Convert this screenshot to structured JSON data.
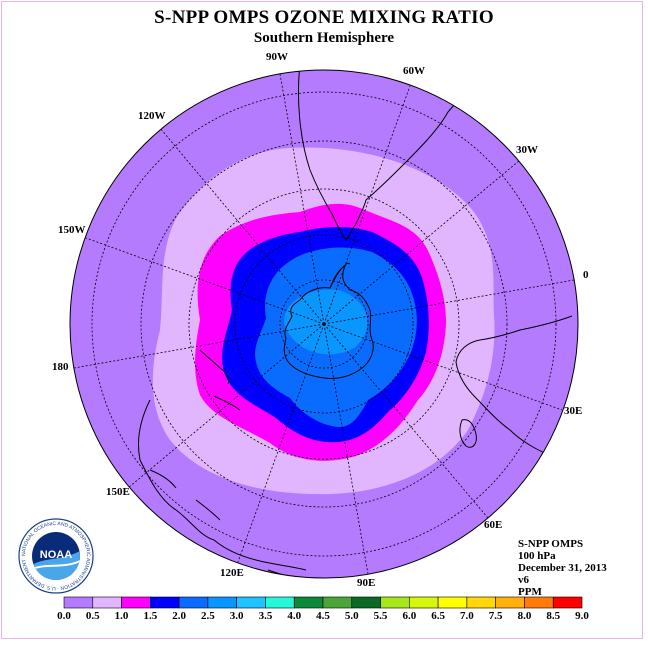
{
  "title": "S-NPP OMPS OZONE MIXING RATIO",
  "subtitle": "Southern Hemisphere",
  "longitude_labels": [
    "90W",
    "60W",
    "30W",
    "0",
    "30E",
    "60E",
    "90E",
    "120E",
    "150E",
    "180",
    "150W",
    "120W"
  ],
  "info": {
    "instrument": "S-NPP OMPS",
    "level": "100 hPa",
    "date": "December 31, 2013",
    "version": "v6",
    "units": "PPM"
  },
  "logo": {
    "text": "NOAA",
    "ring_text": "NATIONAL OCEANIC AND ATMOSPHERIC ADMINISTRATION · U.S. DEPARTMENT OF COMMERCE"
  },
  "colorbar": {
    "ticks": [
      "0.0",
      "0.5",
      "1.0",
      "1.5",
      "2.0",
      "2.5",
      "3.0",
      "3.5",
      "4.0",
      "4.5",
      "5.0",
      "5.5",
      "6.0",
      "6.5",
      "7.0",
      "7.5",
      "8.0",
      "8.5",
      "9.0"
    ],
    "colors": [
      "#b57bff",
      "#e1b6ff",
      "#ff00ff",
      "#0000ff",
      "#0a6cff",
      "#0a96ff",
      "#1ec3ff",
      "#26f7d8",
      "#0c8a3a",
      "#4aa63a",
      "#0c6a26",
      "#a6e61a",
      "#d6f70a",
      "#ffff00",
      "#ffd70a",
      "#ffb00a",
      "#ff7b0a",
      "#ff0000",
      "#8b5a3c"
    ]
  },
  "chart_data": {
    "type": "heatmap",
    "title": "S-NPP OMPS OZONE MIXING RATIO",
    "subtitle": "Southern Hemisphere",
    "projection": "south polar stereographic",
    "variable_units": "PPM",
    "level": "100 hPa",
    "date": "December 31, 2013",
    "color_scale": {
      "min": 0.0,
      "max": 9.0,
      "step": 0.5,
      "levels": [
        0.0,
        0.5,
        1.0,
        1.5,
        2.0,
        2.5,
        3.0,
        3.5,
        4.0,
        4.5,
        5.0,
        5.5,
        6.0,
        6.5,
        7.0,
        7.5,
        8.0,
        8.5,
        9.0
      ]
    },
    "regions": [
      {
        "range": [
          0.0,
          0.5
        ],
        "color": "#b57bff",
        "location": "mid latitudes (background)"
      },
      {
        "range": [
          0.5,
          1.0
        ],
        "color": "#e1b6ff",
        "location": "outer ring around polar vortex"
      },
      {
        "range": [
          1.0,
          1.5
        ],
        "color": "#ff00ff",
        "location": "vortex edge"
      },
      {
        "range": [
          1.5,
          2.0
        ],
        "color": "#0000ff",
        "location": "vortex interior ring"
      },
      {
        "range": [
          2.0,
          2.5
        ],
        "color": "#0a6cff",
        "location": "polar vortex core"
      },
      {
        "range": [
          2.5,
          3.0
        ],
        "color": "#0a96ff",
        "location": "near South Pole"
      }
    ]
  }
}
